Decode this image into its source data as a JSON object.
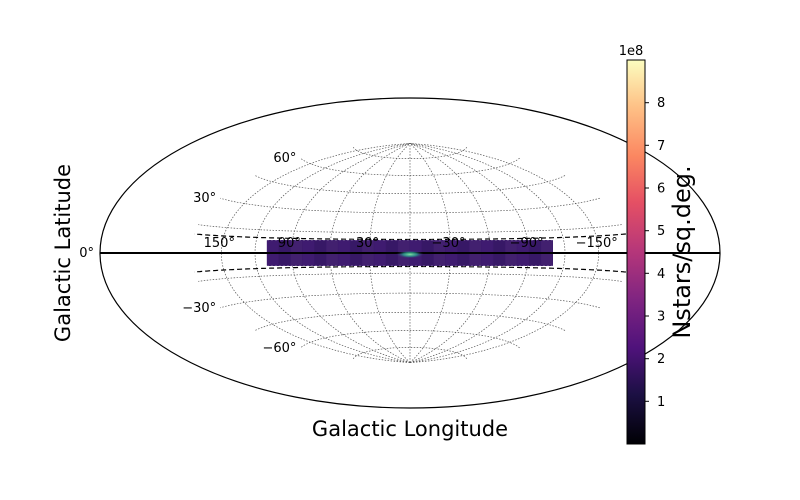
{
  "chart_data": {
    "type": "heatmap",
    "projection": "aitoff-hammer-style ellipse (galactic coordinates)",
    "xlabel": "Galactic Longitude",
    "ylabel": "Galactic Latitude",
    "longitude_ticks": [
      {
        "value": 150,
        "label": "150°"
      },
      {
        "value": 90,
        "label": "90°"
      },
      {
        "value": 30,
        "label": "30°"
      },
      {
        "value": -30,
        "label": "−30°"
      },
      {
        "value": -90,
        "label": "−90°"
      },
      {
        "value": -150,
        "label": "−150°"
      }
    ],
    "latitude_ticks": [
      {
        "value": 60,
        "label": "60°"
      },
      {
        "value": 30,
        "label": "30°"
      },
      {
        "value": 0,
        "label": "0°"
      },
      {
        "value": -30,
        "label": "−30°"
      },
      {
        "value": -60,
        "label": "−60°"
      }
    ],
    "grid": true,
    "survey_boundary_lat": [
      -10,
      10
    ],
    "data_region": {
      "lon_range": [
        -110,
        110
      ],
      "lat_range": [
        -2,
        2
      ]
    },
    "hotspot": {
      "lon": 0,
      "lat": -1,
      "value": 900000000
    },
    "background_value": 200000000,
    "colorbar": {
      "label": "Nstars/sq.deg.",
      "cmap": "magma",
      "min": 0,
      "max": 900000000,
      "scale_label": "1e8",
      "ticks": [
        {
          "value": 100000000,
          "label": "1"
        },
        {
          "value": 200000000,
          "label": "2"
        },
        {
          "value": 300000000,
          "label": "3"
        },
        {
          "value": 400000000,
          "label": "4"
        },
        {
          "value": 500000000,
          "label": "5"
        },
        {
          "value": 600000000,
          "label": "6"
        },
        {
          "value": 700000000,
          "label": "7"
        },
        {
          "value": 800000000,
          "label": "8"
        }
      ]
    }
  }
}
